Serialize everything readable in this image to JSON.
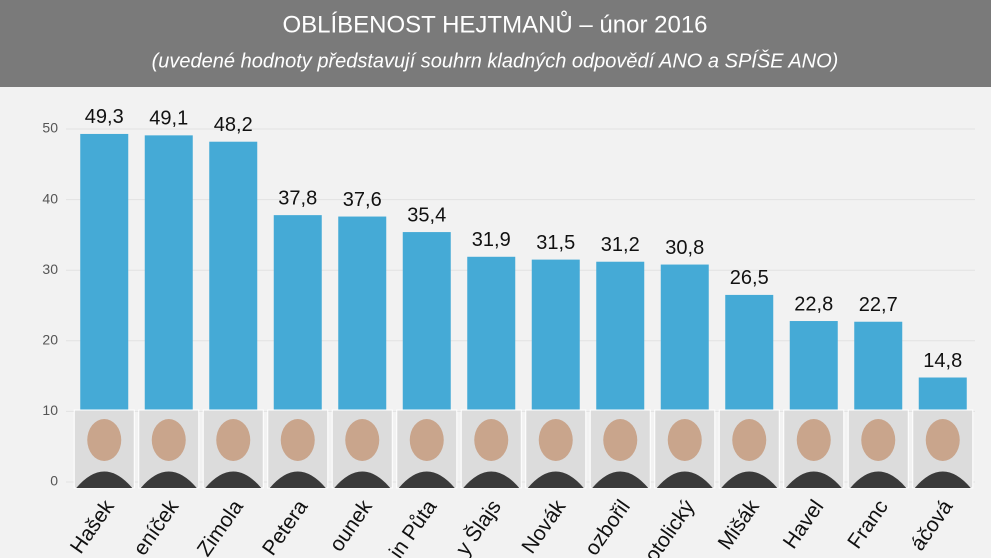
{
  "chart_data": {
    "type": "bar",
    "title": "OBLÍBENOST HEJTMANŮ – únor 2016",
    "subtitle": "(uvedené hodnoty představují souhrn kladných odpovědí ANO a SPÍŠE ANO)",
    "categories": [
      "Hašek",
      "eníček",
      "Zimola",
      "Petera",
      "ounek",
      "in Půta",
      "y Šlajs",
      "Novák",
      "ozbořil",
      "otolický",
      "Mišák",
      "Havel",
      "Franc",
      "áčová"
    ],
    "values": [
      49.3,
      49.1,
      48.2,
      37.8,
      37.6,
      35.4,
      31.9,
      31.5,
      31.2,
      30.8,
      26.5,
      22.8,
      22.7,
      14.8
    ],
    "value_labels": [
      "49,3",
      "49,1",
      "48,2",
      "37,8",
      "37,6",
      "35,4",
      "31,9",
      "31,5",
      "31,2",
      "30,8",
      "26,5",
      "22,8",
      "22,7",
      "14,8"
    ],
    "color": "#45aad6",
    "ylim": [
      0,
      50
    ],
    "yticks": [
      0,
      10,
      20,
      30,
      40,
      50
    ],
    "grid": true
  }
}
